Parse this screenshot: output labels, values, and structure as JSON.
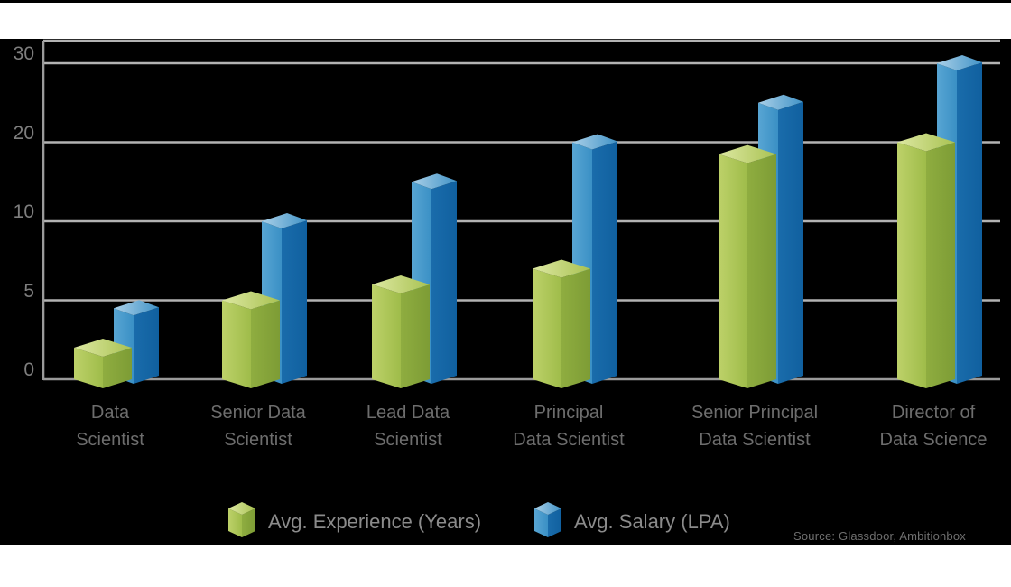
{
  "chart_data": {
    "type": "bar",
    "style": "pseudo-3d clustered columns",
    "title": "",
    "categories": [
      "Data\nScientist",
      "Senior Data\nScientist",
      "Lead Data\nScientist",
      "Principal\nData Scientist",
      "Senior Principal\nData Scientist",
      "Director of\nData Science"
    ],
    "series": [
      {
        "name": "Avg. Experience (Years)",
        "values": [
          2,
          5,
          6,
          7,
          18.5,
          20
        ],
        "colors": {
          "face_light": [
            "#bdd169",
            "#9fbc4a"
          ],
          "face_dark": [
            "#8fad40",
            "#7d9c35"
          ],
          "top": [
            "#dde8a2",
            "#a9c252"
          ]
        }
      },
      {
        "name": "Avg. Salary (LPA)",
        "values": [
          4.5,
          10,
          15,
          20,
          25,
          30
        ],
        "colors": {
          "face_light": [
            "#58a5d3",
            "#3a90c5"
          ],
          "face_dark": [
            "#1a6cab",
            "#10609f"
          ],
          "top": [
            "#aad0e8",
            "#4193c7"
          ]
        }
      }
    ],
    "y_ticks": [
      0,
      5,
      10,
      20,
      30
    ],
    "y_tick_labels": [
      "0",
      "5",
      "10",
      "20",
      "30"
    ],
    "ylim": [
      0,
      30
    ],
    "y_axis_note": "tick marks 0,5,10,20,30 are evenly spaced (non-linear scale)",
    "grid": true,
    "legend_position": "bottom-center",
    "grid_color": "#b3b3b3",
    "axis_color": "#9a9a9a"
  },
  "source": {
    "text": "Source: Glassdoor, Ambitionbox"
  }
}
